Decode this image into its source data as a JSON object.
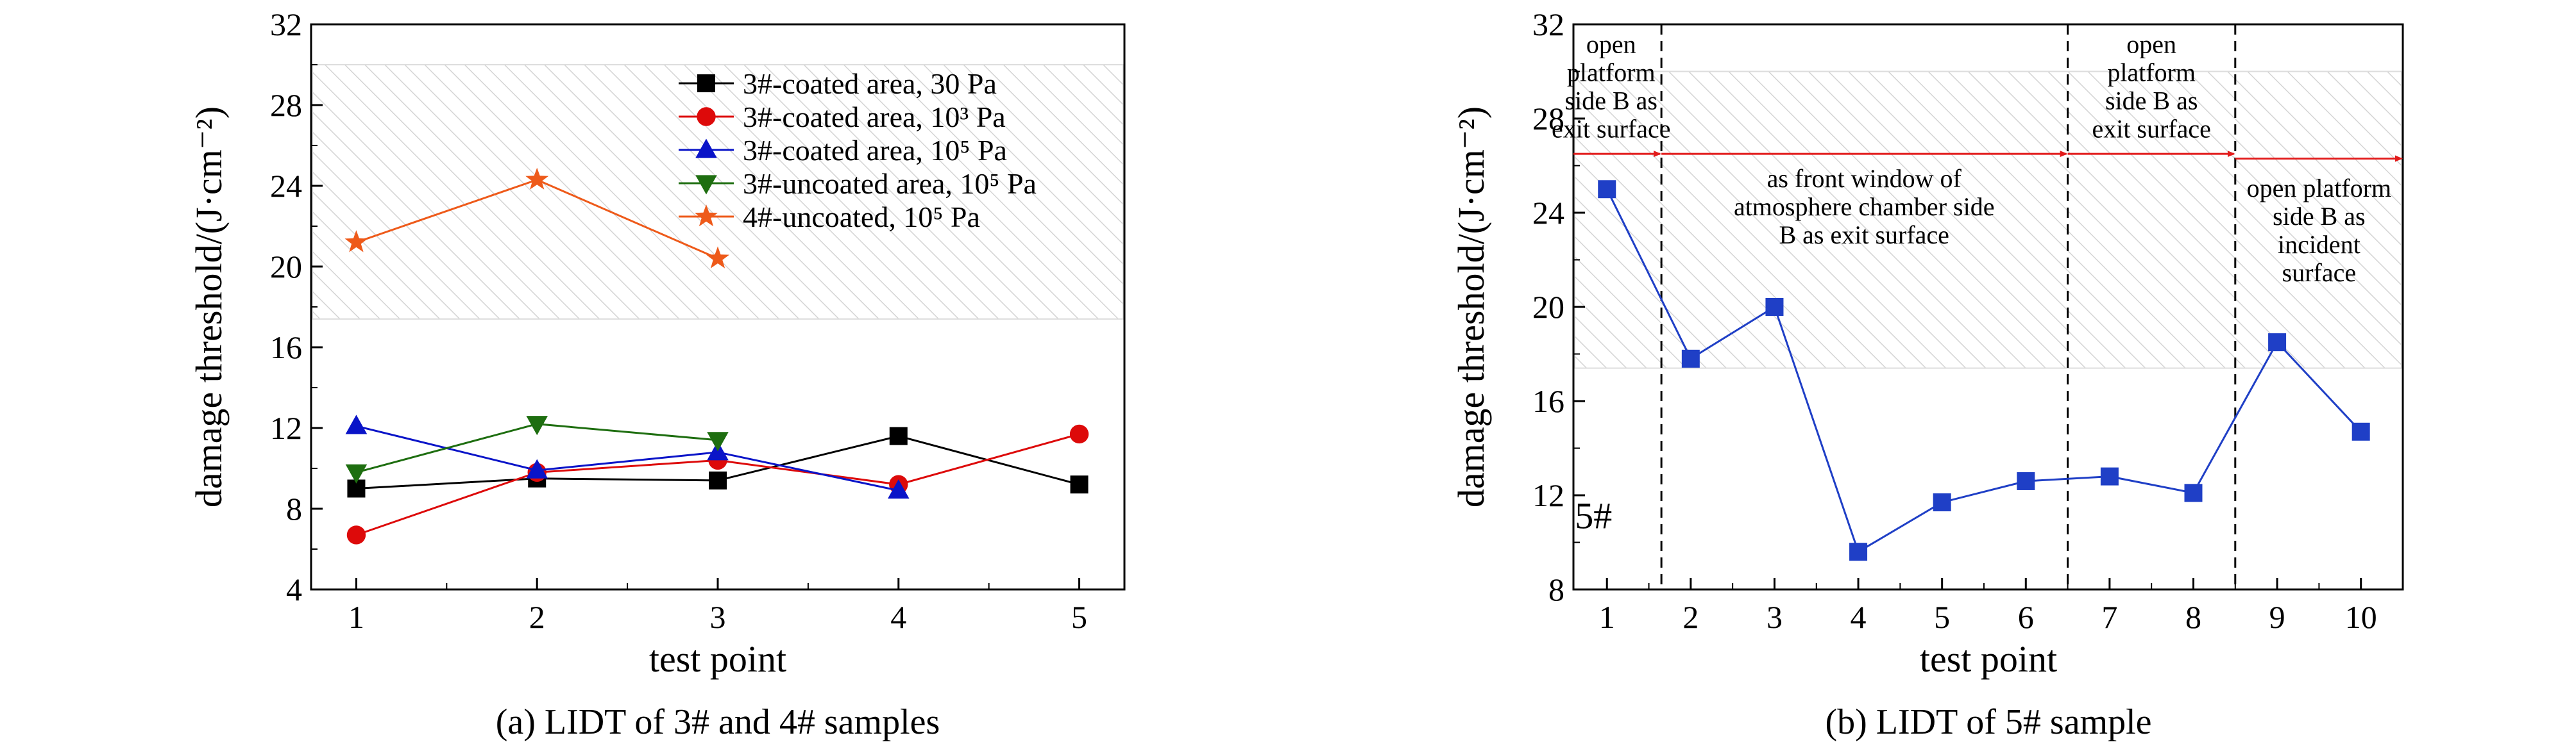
{
  "chart_data": [
    {
      "type": "line",
      "caption": "(a) LIDT of 3# and 4# samples",
      "xlabel": "test point",
      "ylabel": "damage threshold/(J·cm⁻²)",
      "xlim": [
        0.75,
        5.25
      ],
      "ylim": [
        4,
        32
      ],
      "xticks": [
        1,
        2,
        3,
        4,
        5
      ],
      "yticks": [
        4,
        8,
        12,
        16,
        20,
        24,
        28,
        32
      ],
      "band": [
        17.4,
        30.0
      ],
      "legend_position": "top-right",
      "series": [
        {
          "name": "3#-coated area, 30 Pa",
          "color": "#000000",
          "marker": "square",
          "x": [
            1,
            2,
            3,
            4,
            5
          ],
          "values": [
            9.0,
            9.5,
            9.4,
            11.6,
            9.2
          ]
        },
        {
          "name": "3#-coated area, 10³ Pa",
          "color": "#dd0a0a",
          "marker": "circle",
          "x": [
            1,
            2,
            3,
            4,
            5
          ],
          "values": [
            6.7,
            9.8,
            10.4,
            9.2,
            11.7
          ]
        },
        {
          "name": "3#-coated area, 10⁵ Pa",
          "color": "#0a14c8",
          "marker": "triangle-up",
          "x": [
            1,
            2,
            3,
            4
          ],
          "values": [
            12.1,
            9.9,
            10.8,
            8.9
          ]
        },
        {
          "name": "3#-uncoated area, 10⁵ Pa",
          "color": "#1e6e10",
          "marker": "triangle-down",
          "x": [
            1,
            2,
            3
          ],
          "values": [
            9.8,
            12.2,
            11.4
          ]
        },
        {
          "name": "4#-uncoated, 10⁵ Pa",
          "color": "#ee5a1a",
          "marker": "star",
          "x": [
            1,
            2,
            3
          ],
          "values": [
            21.2,
            24.3,
            20.4
          ]
        }
      ]
    },
    {
      "type": "line",
      "caption": "(b) LIDT of 5# sample",
      "xlabel": "test point",
      "ylabel": "damage threshold/(J·cm⁻²)",
      "xlim": [
        0.6,
        10.5
      ],
      "ylim": [
        8,
        32
      ],
      "xticks": [
        1,
        2,
        3,
        4,
        5,
        6,
        7,
        8,
        9,
        10
      ],
      "yticks": [
        8,
        12,
        16,
        20,
        24,
        28,
        32
      ],
      "band": [
        17.4,
        30.0
      ],
      "sample_label": "5#",
      "dividers": [
        1.65,
        6.5,
        8.5
      ],
      "series": [
        {
          "name": "",
          "color": "#1f3fc6",
          "marker": "square",
          "x": [
            1,
            2,
            3,
            4,
            5,
            6,
            7,
            8,
            9,
            10
          ],
          "values": [
            25.0,
            17.8,
            20.0,
            9.6,
            11.7,
            12.6,
            12.8,
            12.1,
            18.5,
            14.7
          ]
        }
      ],
      "annotations": [
        {
          "lines": [
            "open",
            "platform",
            "side B as",
            "exit surface"
          ],
          "x": 1.05,
          "y_top": 31.6
        },
        {
          "lines": [
            "as front window of",
            "atmosphere chamber side",
            "B as exit surface"
          ],
          "x": 4.07,
          "y_top": 25.9
        },
        {
          "lines": [
            "open",
            "platform",
            "side B as",
            "exit surface"
          ],
          "x": 7.5,
          "y_top": 31.6
        },
        {
          "lines": [
            "open platform",
            "side B as",
            "incident",
            "surface"
          ],
          "x": 9.5,
          "y_top": 25.5
        }
      ],
      "arrows": [
        {
          "x_from": 0.6,
          "x_to": 1.65,
          "y": 26.5
        },
        {
          "x_from": 1.65,
          "x_to": 6.5,
          "y": 26.5
        },
        {
          "x_from": 6.5,
          "x_to": 8.5,
          "y": 26.5
        },
        {
          "x_from": 8.5,
          "x_to": 10.5,
          "y": 26.3
        }
      ]
    }
  ]
}
